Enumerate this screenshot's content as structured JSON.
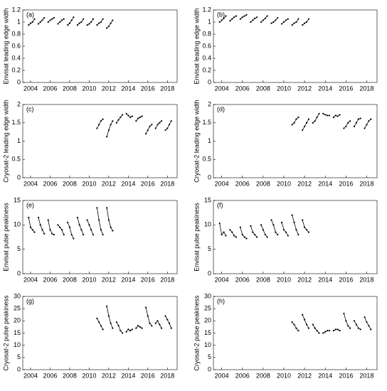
{
  "chart_data": [
    {
      "type": "line",
      "label": "(a)",
      "ylabel": "Envisat leading edge width",
      "color": "#000000",
      "x": [
        2003.8,
        2004.0,
        2004.2,
        2004.4,
        null,
        2004.8,
        2005.0,
        2005.2,
        2005.4,
        null,
        2005.8,
        2006.0,
        2006.2,
        2006.4,
        null,
        2006.8,
        2007.0,
        2007.2,
        2007.4,
        null,
        2007.8,
        2008.0,
        2008.2,
        2008.4,
        null,
        2008.8,
        2009.0,
        2009.2,
        2009.4,
        null,
        2009.8,
        2010.0,
        2010.2,
        2010.4,
        null,
        2010.8,
        2011.0,
        2011.2,
        2011.4,
        null,
        2011.8,
        2012.0,
        2012.2,
        2012.4
      ],
      "values": [
        0.95,
        0.98,
        1.0,
        1.05,
        null,
        0.97,
        1.0,
        1.03,
        1.07,
        null,
        1.0,
        1.03,
        1.05,
        1.07,
        null,
        0.97,
        1.0,
        1.03,
        1.05,
        null,
        0.95,
        0.98,
        1.03,
        1.08,
        null,
        0.95,
        0.98,
        1.0,
        1.05,
        null,
        0.95,
        0.97,
        1.0,
        1.05,
        null,
        0.95,
        0.98,
        1.0,
        1.05,
        null,
        0.9,
        0.93,
        0.98,
        1.03
      ],
      "xlim": [
        2003.2,
        2019.0
      ],
      "xticks": [
        2004,
        2006,
        2008,
        2010,
        2012,
        2014,
        2016,
        2018
      ],
      "ylim": [
        0,
        1.2
      ],
      "yticks": [
        0,
        0.2,
        0.4,
        0.6,
        0.8,
        1,
        1.2
      ]
    },
    {
      "type": "line",
      "label": "(b)",
      "ylabel": "Envisat leading edge width",
      "color": "#000000",
      "x": [
        2003.8,
        2004.0,
        2004.2,
        2004.4,
        null,
        2004.8,
        2005.0,
        2005.2,
        2005.4,
        null,
        2005.8,
        2006.0,
        2006.2,
        2006.4,
        null,
        2006.8,
        2007.0,
        2007.2,
        2007.4,
        null,
        2007.8,
        2008.0,
        2008.2,
        2008.4,
        null,
        2008.8,
        2009.0,
        2009.2,
        2009.4,
        null,
        2009.8,
        2010.0,
        2010.2,
        2010.4,
        null,
        2010.8,
        2011.0,
        2011.2,
        2011.4,
        null,
        2011.8,
        2012.0,
        2012.2,
        2012.4
      ],
      "values": [
        1.0,
        1.03,
        1.06,
        1.1,
        null,
        1.02,
        1.05,
        1.08,
        1.1,
        null,
        1.05,
        1.08,
        1.1,
        1.12,
        null,
        1.0,
        1.03,
        1.06,
        1.08,
        null,
        1.0,
        1.03,
        1.06,
        1.1,
        null,
        0.98,
        1.0,
        1.03,
        1.07,
        null,
        0.97,
        1.0,
        1.03,
        1.05,
        null,
        0.95,
        0.98,
        1.0,
        1.05,
        null,
        0.95,
        0.98,
        1.0,
        1.05
      ],
      "xlim": [
        2003.2,
        2019.0
      ],
      "xticks": [
        2004,
        2006,
        2008,
        2010,
        2012,
        2014,
        2016,
        2018
      ],
      "ylim": [
        0,
        1.2
      ],
      "yticks": [
        0,
        0.2,
        0.4,
        0.6,
        0.8,
        1,
        1.2
      ]
    },
    {
      "type": "line",
      "label": "(c)",
      "ylabel": "Cryosat-2 leading edge width",
      "color": "#000000",
      "x": [
        2010.8,
        2011.0,
        2011.2,
        2011.4,
        null,
        2011.8,
        2012.0,
        2012.2,
        2012.4,
        null,
        2012.8,
        2013.0,
        2013.2,
        2013.4,
        null,
        2013.8,
        2014.0,
        2014.2,
        2014.4,
        null,
        2014.8,
        2015.0,
        2015.2,
        2015.4,
        null,
        2015.8,
        2016.0,
        2016.2,
        2016.4,
        null,
        2016.8,
        2017.0,
        2017.2,
        2017.4,
        null,
        2017.8,
        2018.0,
        2018.2,
        2018.4
      ],
      "values": [
        1.35,
        1.45,
        1.55,
        1.6,
        null,
        1.12,
        1.3,
        1.45,
        1.55,
        null,
        1.5,
        1.58,
        1.65,
        1.72,
        null,
        1.75,
        1.7,
        1.65,
        1.68,
        null,
        1.55,
        1.62,
        1.65,
        1.68,
        null,
        1.2,
        1.3,
        1.4,
        1.45,
        null,
        1.35,
        1.45,
        1.5,
        1.55,
        null,
        1.3,
        1.35,
        1.45,
        1.55
      ],
      "xlim": [
        2003.2,
        2019.0
      ],
      "xticks": [
        2004,
        2006,
        2008,
        2010,
        2012,
        2014,
        2016,
        2018
      ],
      "ylim": [
        0,
        2
      ],
      "yticks": [
        0,
        0.5,
        1,
        1.5,
        2
      ]
    },
    {
      "type": "line",
      "label": "(d)",
      "ylabel": "Cryosat-2 leading edge width",
      "color": "#000000",
      "x": [
        2010.8,
        2011.0,
        2011.2,
        2011.4,
        null,
        2011.8,
        2012.0,
        2012.2,
        2012.4,
        null,
        2012.8,
        2013.0,
        2013.2,
        2013.4,
        null,
        2013.8,
        2014.0,
        2014.2,
        2014.4,
        null,
        2014.8,
        2015.0,
        2015.2,
        2015.4,
        null,
        2015.8,
        2016.0,
        2016.2,
        2016.4,
        null,
        2016.8,
        2017.0,
        2017.2,
        2017.4,
        null,
        2017.8,
        2018.0,
        2018.2,
        2018.4
      ],
      "values": [
        1.45,
        1.5,
        1.6,
        1.65,
        null,
        1.3,
        1.4,
        1.5,
        1.6,
        null,
        1.5,
        1.55,
        1.65,
        1.75,
        null,
        1.75,
        1.72,
        1.7,
        1.7,
        null,
        1.65,
        1.7,
        1.68,
        1.72,
        null,
        1.35,
        1.4,
        1.5,
        1.55,
        null,
        1.4,
        1.5,
        1.6,
        1.62,
        null,
        1.35,
        1.45,
        1.55,
        1.6
      ],
      "xlim": [
        2003.2,
        2019.0
      ],
      "xticks": [
        2004,
        2006,
        2008,
        2010,
        2012,
        2014,
        2016,
        2018
      ],
      "ylim": [
        0,
        2
      ],
      "yticks": [
        0,
        0.5,
        1,
        1.5,
        2
      ]
    },
    {
      "type": "line",
      "label": "(e)",
      "ylabel": "Envisat pulse peakiness",
      "color": "#000000",
      "x": [
        2003.8,
        2004.0,
        2004.2,
        2004.4,
        null,
        2004.8,
        2005.0,
        2005.2,
        2005.4,
        null,
        2005.8,
        2006.0,
        2006.2,
        2006.4,
        null,
        2006.8,
        2007.0,
        2007.2,
        2007.4,
        null,
        2007.8,
        2008.0,
        2008.2,
        2008.4,
        null,
        2008.8,
        2009.0,
        2009.2,
        2009.4,
        null,
        2009.8,
        2010.0,
        2010.2,
        2010.4,
        null,
        2010.8,
        2011.0,
        2011.2,
        2011.4,
        null,
        2011.8,
        2012.0,
        2012.2,
        2012.4
      ],
      "values": [
        11.5,
        9.5,
        9,
        8.5,
        null,
        11.5,
        10,
        9,
        8.2,
        null,
        11,
        9,
        8.2,
        8,
        null,
        10,
        9.5,
        9,
        8,
        null,
        10.5,
        9.5,
        8,
        7.2,
        null,
        11.5,
        10,
        9,
        8,
        null,
        11,
        10,
        9,
        8,
        null,
        13.5,
        11,
        9,
        8,
        null,
        13.5,
        11,
        9.5,
        8.8
      ],
      "xlim": [
        2003.2,
        2019.0
      ],
      "xticks": [
        2004,
        2006,
        2008,
        2010,
        2012,
        2014,
        2016,
        2018
      ],
      "ylim": [
        0,
        15
      ],
      "yticks": [
        0,
        5,
        10,
        15
      ]
    },
    {
      "type": "line",
      "label": "(f)",
      "ylabel": "Envisat pulse peakiness",
      "color": "#000000",
      "x": [
        2003.8,
        2004.0,
        2004.2,
        2004.4,
        null,
        2004.8,
        2005.0,
        2005.2,
        2005.4,
        null,
        2005.8,
        2006.0,
        2006.2,
        2006.4,
        null,
        2006.8,
        2007.0,
        2007.2,
        2007.4,
        null,
        2007.8,
        2008.0,
        2008.2,
        2008.4,
        null,
        2008.8,
        2009.0,
        2009.2,
        2009.4,
        null,
        2009.8,
        2010.0,
        2010.2,
        2010.4,
        null,
        2010.8,
        2011.0,
        2011.2,
        2011.4,
        null,
        2011.8,
        2012.0,
        2012.2,
        2012.4
      ],
      "values": [
        10.3,
        8,
        8.5,
        7.8,
        null,
        9,
        8.5,
        7.8,
        7.5,
        null,
        9.5,
        8,
        7.5,
        7.2,
        null,
        9.8,
        8.5,
        8,
        7.5,
        null,
        10,
        9,
        8,
        7.5,
        null,
        11,
        10,
        8.5,
        8,
        null,
        10.5,
        9,
        8.5,
        7.8,
        null,
        12,
        10.5,
        9,
        8,
        null,
        11,
        9.5,
        9,
        8.5
      ],
      "xlim": [
        2003.2,
        2019.0
      ],
      "xticks": [
        2004,
        2006,
        2008,
        2010,
        2012,
        2014,
        2016,
        2018
      ],
      "ylim": [
        0,
        15
      ],
      "yticks": [
        0,
        5,
        10,
        15
      ]
    },
    {
      "type": "line",
      "label": "(g)",
      "ylabel": "Cryosat-2 pulse peakiness",
      "color": "#000000",
      "x": [
        2010.8,
        2011.0,
        2011.2,
        2011.4,
        null,
        2011.8,
        2012.0,
        2012.2,
        2012.4,
        null,
        2012.8,
        2013.0,
        2013.2,
        2013.4,
        null,
        2013.8,
        2014.0,
        2014.2,
        2014.4,
        null,
        2014.8,
        2015.0,
        2015.2,
        2015.4,
        null,
        2015.8,
        2016.0,
        2016.2,
        2016.4,
        null,
        2016.8,
        2017.0,
        2017.2,
        2017.4,
        null,
        2017.8,
        2018.0,
        2018.2,
        2018.4
      ],
      "values": [
        21,
        19.5,
        18,
        16.5,
        null,
        26,
        22,
        19,
        17,
        null,
        19.5,
        18,
        16,
        15,
        null,
        15.5,
        16.5,
        16,
        16.5,
        null,
        17,
        18,
        17.5,
        17,
        null,
        25.5,
        22,
        19,
        18,
        null,
        19,
        20,
        18.5,
        17,
        null,
        22,
        20.5,
        19,
        17
      ],
      "xlim": [
        2003.2,
        2019.0
      ],
      "xticks": [
        2004,
        2006,
        2008,
        2010,
        2012,
        2014,
        2016,
        2018
      ],
      "ylim": [
        0,
        30
      ],
      "yticks": [
        0,
        5,
        10,
        15,
        20,
        25,
        30
      ]
    },
    {
      "type": "line",
      "label": "(h)",
      "ylabel": "Cryosat-2 pulse peakiness",
      "color": "#000000",
      "x": [
        2010.8,
        2011.0,
        2011.2,
        2011.4,
        null,
        2011.8,
        2012.0,
        2012.2,
        2012.4,
        null,
        2012.8,
        2013.0,
        2013.2,
        2013.4,
        null,
        2013.8,
        2014.0,
        2014.2,
        2014.4,
        null,
        2014.8,
        2015.0,
        2015.2,
        2015.4,
        null,
        2015.8,
        2016.0,
        2016.2,
        2016.4,
        null,
        2016.8,
        2017.0,
        2017.2,
        2017.4,
        null,
        2017.8,
        2018.0,
        2018.2,
        2018.4
      ],
      "values": [
        19.5,
        18.5,
        17,
        16,
        null,
        22.5,
        20.5,
        18.5,
        17,
        null,
        18.5,
        17,
        16,
        15,
        null,
        15,
        15.5,
        16,
        16,
        null,
        16,
        16.5,
        16.5,
        16,
        null,
        23,
        20,
        18,
        17,
        null,
        20,
        18.5,
        17,
        16.5,
        null,
        21.5,
        19.5,
        18,
        16.5
      ],
      "xlim": [
        2003.2,
        2019.0
      ],
      "xticks": [
        2004,
        2006,
        2008,
        2010,
        2012,
        2014,
        2016,
        2018
      ],
      "ylim": [
        0,
        30
      ],
      "yticks": [
        0,
        5,
        10,
        15,
        20,
        25,
        30
      ]
    }
  ]
}
